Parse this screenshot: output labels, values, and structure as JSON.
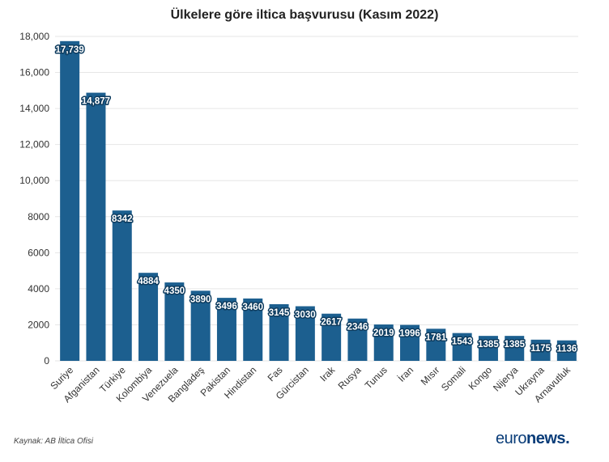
{
  "chart_data": {
    "type": "bar",
    "title": "Ülkelere göre iltica başvurusu (Kasım 2022)",
    "xlabel": "",
    "ylabel": "",
    "ylim": [
      0,
      18000
    ],
    "yticks": [
      0,
      2000,
      4000,
      6000,
      8000,
      10000,
      12000,
      14000,
      16000,
      18000
    ],
    "ytick_labels": [
      "0",
      "2000",
      "4000",
      "6000",
      "8000",
      "10,000",
      "12,000",
      "14,000",
      "16,000",
      "18,000"
    ],
    "grid": true,
    "categories": [
      "Suriye",
      "Afganistan",
      "Türkiye",
      "Kolombiya",
      "Venezuela",
      "Bangladeş",
      "Pakistan",
      "Hindistan",
      "Fas",
      "Gürcistan",
      "Irak",
      "Rusya",
      "Tunus",
      "İran",
      "Mısır",
      "Somali",
      "Kongo",
      "Nijerya",
      "Ukrayna",
      "Arnavutluk"
    ],
    "values": [
      17739,
      14877,
      8342,
      4884,
      4350,
      3890,
      3496,
      3460,
      3145,
      3030,
      2617,
      2346,
      2019,
      1996,
      1781,
      1543,
      1385,
      1385,
      1175,
      1136
    ],
    "value_labels": [
      "17,739",
      "14,877",
      "8342",
      "4884",
      "4350",
      "3890",
      "3496",
      "3460",
      "3145",
      "3030",
      "2617",
      "2346",
      "2019",
      "1996",
      "1781",
      "1543",
      "1385",
      "1385",
      "1175",
      "1136"
    ],
    "colors": {
      "bar": "#1c5f8f",
      "label_stroke": "#0d3b5e",
      "grid": "#e6e6e6",
      "axis_text": "#333333"
    }
  },
  "source": "Kaynak: AB İltica Ofisi",
  "logo": {
    "part1": "euro",
    "part2": "news",
    "dot": "."
  }
}
